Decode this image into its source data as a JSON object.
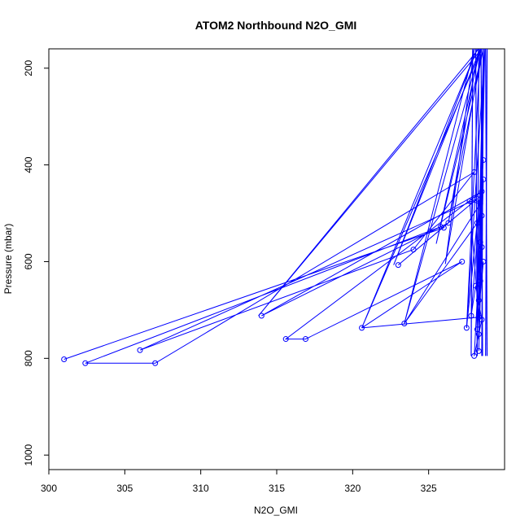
{
  "chart_data": {
    "type": "line",
    "title": "ATOM2 Northbound N2O_GMI",
    "xlabel": "N2O_GMI",
    "ylabel": "Pressure (mbar)",
    "xlim": [
      300,
      330
    ],
    "ylim": [
      1030,
      160
    ],
    "y_reversed": true,
    "grid": false,
    "series_color": "#0000ff",
    "x_ticks": [
      300,
      305,
      310,
      315,
      320,
      325
    ],
    "y_ticks": [
      200,
      400,
      600,
      800,
      1000
    ],
    "series": [
      {
        "marker": "open-circle",
        "x": [
          301.0,
          326.0,
          325.8,
          302.4,
          307.0,
          328.0,
          324.0,
          306.0,
          328.2,
          323.0,
          326.3,
          314.0,
          328.5,
          315.6,
          316.9,
          327.2,
          320.6,
          328.3,
          327.7,
          328.4,
          323.4,
          328.2,
          327.5,
          328.6,
          327.8,
          328.1,
          328.5,
          328.0,
          328.4,
          328.3,
          328.6,
          328.2,
          328.5,
          328.3,
          328.4,
          328.6,
          328.3,
          328.5
        ],
        "y": [
          802,
          530,
          528,
          810,
          810,
          415,
          575,
          783,
          470,
          607,
          520,
          712,
          455,
          760,
          760,
          600,
          737,
          715,
          475,
          480,
          728,
          520,
          737,
          390,
          712,
          650,
          720,
          795,
          560,
          680,
          600,
          740,
          505,
          750,
          640,
          430,
          785,
          570
        ]
      },
      {
        "marker": "none",
        "x": [
          328.5,
          313.8,
          328.3,
          326.3,
          328.6,
          325.5,
          328.4,
          322.7,
          328.2,
          320.6,
          328.5,
          326.1,
          328.0,
          323.4,
          328.4,
          327.5,
          328.7,
          328.2,
          328.6,
          328.4,
          328.7,
          328.3,
          328.6
        ],
        "y": [
          160,
          712,
          160,
          520,
          160,
          563,
          160,
          607,
          160,
          737,
          160,
          605,
          160,
          728,
          160,
          737,
          160,
          700,
          160,
          560,
          160,
          760,
          160
        ]
      }
    ]
  }
}
